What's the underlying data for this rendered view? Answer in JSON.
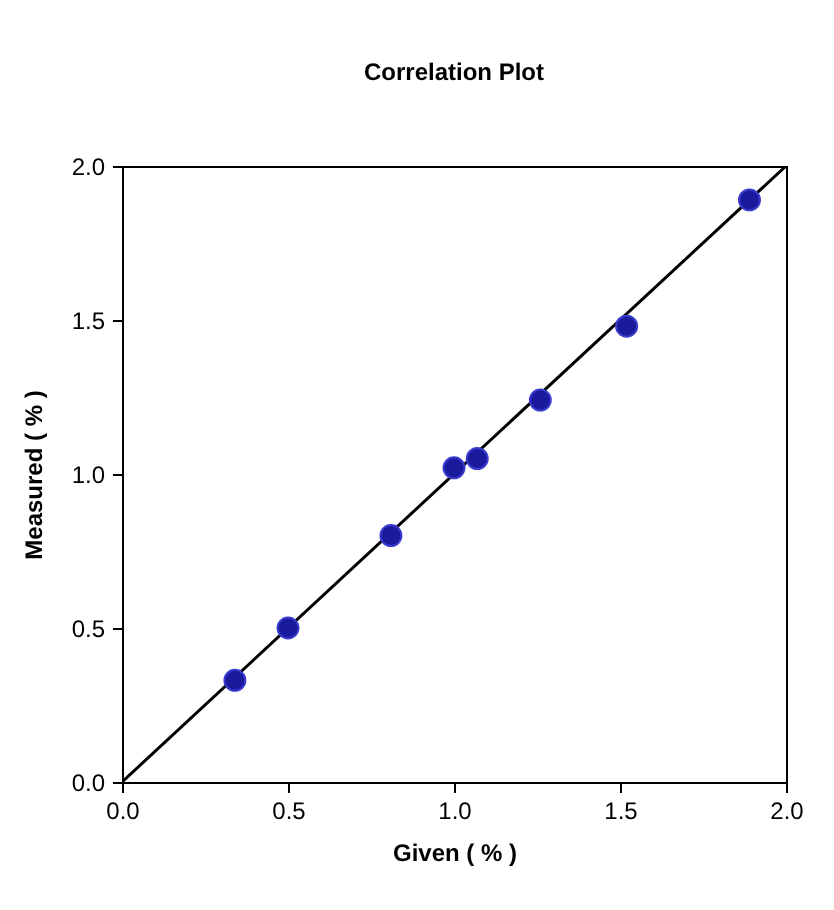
{
  "chart_data": {
    "type": "scatter",
    "title": "Correlation Plot",
    "xlabel": "Given ( % )",
    "ylabel": "Measured ( % )",
    "xlim": [
      0,
      2
    ],
    "ylim": [
      0,
      2
    ],
    "xticks": [
      {
        "value": 0,
        "label": "0.0"
      },
      {
        "value": 0.5,
        "label": "0.5"
      },
      {
        "value": 1,
        "label": "1.0"
      },
      {
        "value": 1.5,
        "label": "1.5"
      },
      {
        "value": 2,
        "label": "2.0"
      }
    ],
    "yticks": [
      {
        "value": 0,
        "label": "0.0"
      },
      {
        "value": 0.5,
        "label": "0.5"
      },
      {
        "value": 1,
        "label": "1.0"
      },
      {
        "value": 1.5,
        "label": "1.5"
      },
      {
        "value": 2,
        "label": "2.0"
      }
    ],
    "grid": false,
    "marker": "circle",
    "series": [
      {
        "type": "line",
        "color": "#000000",
        "x": [
          0,
          2
        ],
        "values": [
          0,
          2
        ],
        "line_style": "solid",
        "marker": "none"
      },
      {
        "color": "#1a1a9c",
        "x": [
          0.34,
          0.5,
          0.81,
          1.0,
          1.07,
          1.26,
          1.52,
          1.89
        ],
        "values": [
          0.33,
          0.5,
          0.8,
          1.02,
          1.05,
          1.24,
          1.48,
          1.89
        ]
      }
    ]
  }
}
